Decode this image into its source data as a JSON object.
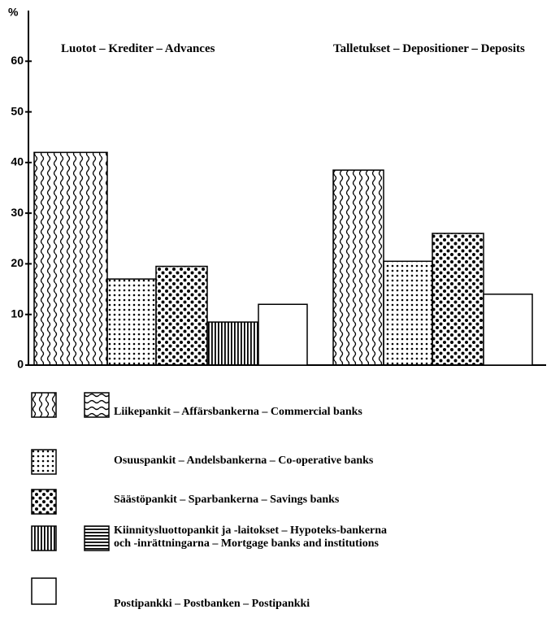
{
  "chart_data": {
    "type": "bar",
    "y_label": "%",
    "categories": [
      "Luotot – Krediter – Advances",
      "Talletukset – Depositioner – Deposits"
    ],
    "series": [
      {
        "name": "Liikepankit – Affärsbankerna – Commercial banks",
        "values": [
          42,
          38.5
        ]
      },
      {
        "name": "Osuuspankit – Andelsbankerna – Co-operative banks",
        "values": [
          17,
          20.5
        ]
      },
      {
        "name": "Säästöpankit – Sparbankerna – Savings banks",
        "values": [
          19.5,
          26
        ]
      },
      {
        "name": "Kiinnitysluottopankit ja -laitokset – Hypoteks-bankerna och -inrättningarna – Mortgage banks and institutions",
        "values": [
          8.5,
          null
        ]
      },
      {
        "name": "Postipankki – Postbanken – Postipankki",
        "values": [
          12,
          14
        ]
      }
    ],
    "ylim": [
      0,
      70
    ],
    "yticks": [
      0,
      10,
      20,
      30,
      40,
      50,
      60
    ]
  }
}
